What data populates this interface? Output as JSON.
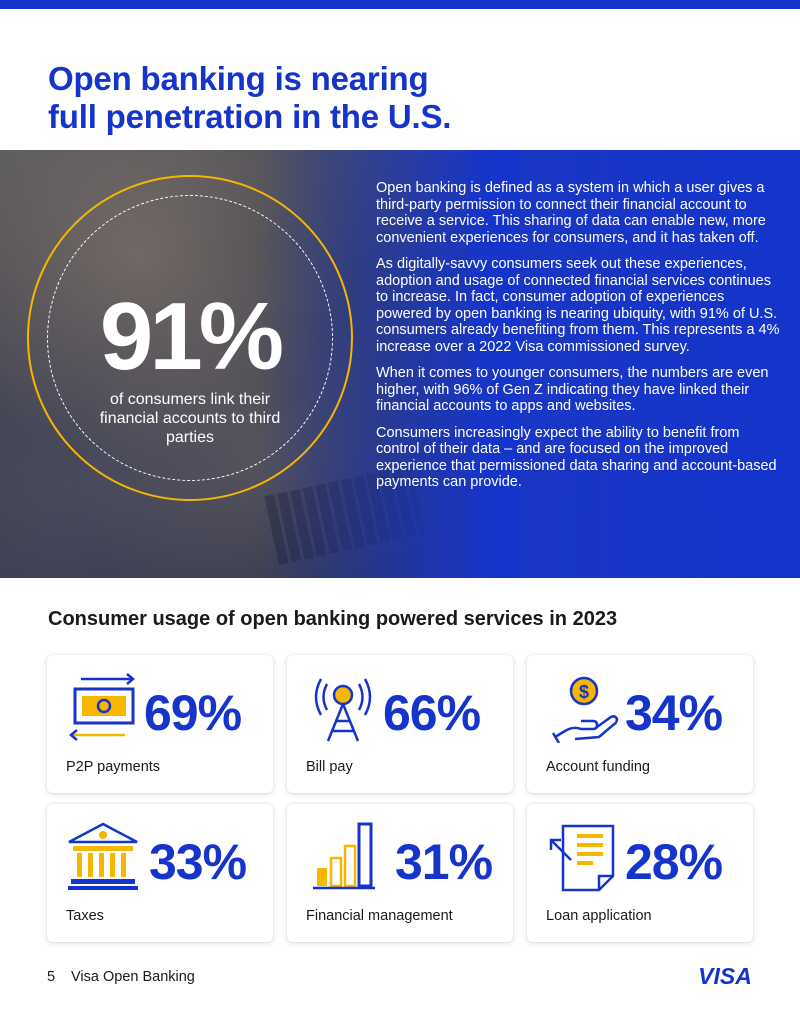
{
  "title": {
    "line1": "Open banking is nearing",
    "line2": "full penetration in the U.S."
  },
  "hero": {
    "stat": "91%",
    "caption": "of consumers link their financial accounts to third parties",
    "paragraphs": [
      "Open banking is defined as a system in which a user gives a third-party permission to connect their financial account to receive a service. This sharing of data can enable new, more convenient experiences for consumers, and it has taken off.",
      "As digitally-savvy consumers seek out these experiences, adoption and usage of connected financial services continues to increase. In fact, consumer adoption of experiences powered by open banking is nearing ubiquity, with 91% of U.S. consumers already benefiting from them. This represents a 4% increase over a 2022 Visa commissioned survey.",
      "When it comes to younger consumers, the numbers are even higher, with 96% of Gen Z indicating they have linked their financial accounts to apps and websites.",
      "Consumers increasingly expect the ability to benefit from control of their data – and are focused on the improved experience that permissioned data sharing and account-based payments can provide."
    ]
  },
  "usage": {
    "heading": "Consumer usage of open banking powered services in 2023",
    "cards": [
      {
        "value": "69%",
        "label": "P2P payments",
        "icon": "money-transfer-icon"
      },
      {
        "value": "66%",
        "label": "Bill pay",
        "icon": "signal-tower-icon"
      },
      {
        "value": "34%",
        "label": "Account funding",
        "icon": "hand-coin-icon"
      },
      {
        "value": "33%",
        "label": "Taxes",
        "icon": "government-building-icon"
      },
      {
        "value": "31%",
        "label": "Financial management",
        "icon": "bar-chart-icon"
      },
      {
        "value": "28%",
        "label": "Loan application",
        "icon": "document-icon"
      }
    ]
  },
  "footer": {
    "page_number": "5",
    "doc_title": "Visa Open Banking",
    "logo_text": "VISA"
  },
  "colors": {
    "brand_blue": "#1434cb",
    "accent_gold": "#f7b600"
  }
}
